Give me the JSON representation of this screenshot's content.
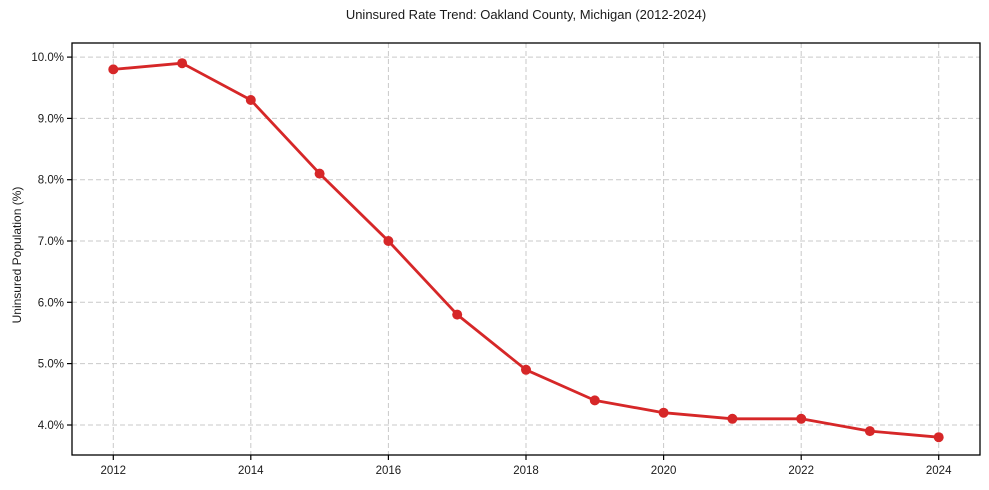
{
  "chart_data": {
    "type": "line",
    "title": "Uninsured Rate Trend: Oakland County, Michigan (2012-2024)",
    "xlabel": "",
    "ylabel": "Uninsured Population (%)",
    "x": [
      2012,
      2013,
      2014,
      2015,
      2016,
      2017,
      2018,
      2019,
      2020,
      2021,
      2022,
      2023,
      2024
    ],
    "values": [
      9.8,
      9.9,
      9.3,
      8.1,
      7.0,
      5.8,
      4.9,
      4.4,
      4.2,
      4.1,
      4.1,
      3.9,
      3.8
    ],
    "xlim": [
      2011.4,
      2024.6
    ],
    "ylim": [
      3.51,
      10.23
    ],
    "xticks": {
      "values": [
        2012,
        2014,
        2016,
        2018,
        2020,
        2022,
        2024
      ],
      "labels": [
        "2012",
        "2014",
        "2016",
        "2018",
        "2020",
        "2022",
        "2024"
      ]
    },
    "yticks": {
      "values": [
        4,
        5,
        6,
        7,
        8,
        9,
        10
      ],
      "labels": [
        "4.0%",
        "5.0%",
        "6.0%",
        "7.0%",
        "8.0%",
        "9.0%",
        "10.0%"
      ]
    },
    "grid": true,
    "grid_style": "dashed",
    "legend_position": "none",
    "marker": "circle",
    "colors": {
      "line": "#d62728",
      "grid": "#c9c9c9",
      "spine": "#000000",
      "text": "#1a1a1a",
      "background": "#ffffff"
    }
  }
}
